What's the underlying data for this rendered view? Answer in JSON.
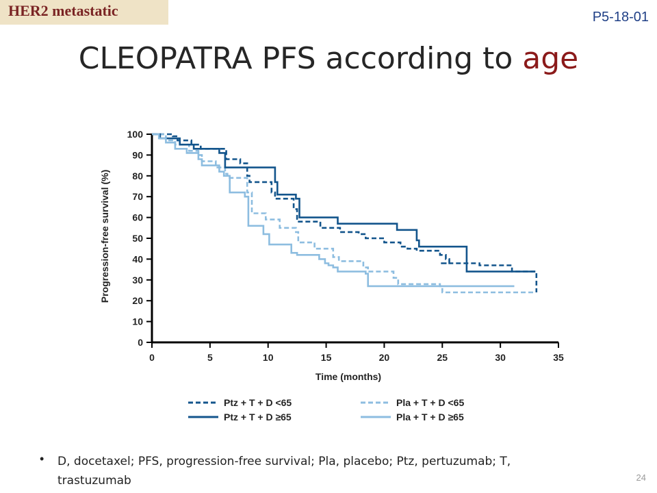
{
  "tag": "HER2 metastatic",
  "abstract_code": "P5-18-01",
  "title_main": "CLEOPATRA PFS according to ",
  "title_accent": "age",
  "footnote": "D, docetaxel; PFS, progression-free survival; Pla, placebo; Ptz, pertuzumab; T, trastuzumab",
  "bullet_glyph": "•",
  "page_number": "24",
  "colors": {
    "dark_blue": "#13558c",
    "light_blue": "#8dbde0",
    "title_accent": "#8b1a1a",
    "tag_bg": "#efe3c6"
  },
  "chart_data": {
    "type": "line",
    "xlabel": "Time (months)",
    "ylabel": "Progression-free survival (%)",
    "xlim": [
      0,
      35
    ],
    "ylim": [
      0,
      100
    ],
    "xticks": [
      0,
      5,
      10,
      15,
      20,
      25,
      30,
      35
    ],
    "yticks": [
      0,
      10,
      20,
      30,
      40,
      50,
      60,
      70,
      80,
      90,
      100
    ],
    "legend_position": "bottom",
    "series": [
      {
        "name": "Ptz + T + D <65",
        "color": "#13558c",
        "dash": true,
        "x": [
          0,
          1.8,
          2.2,
          3.4,
          4.2,
          6.4,
          7.6,
          8.2,
          8.4,
          10.3,
          10.6,
          12.2,
          12.5,
          14.5,
          16.2,
          17.8,
          18.4,
          20.0,
          21.4,
          22.0,
          22.8,
          24.8,
          25.3,
          25.6,
          24.8,
          24.9,
          25.5,
          26.0,
          27.0,
          27.6,
          27.7,
          28.2,
          28.3,
          28.6,
          29.0,
          29.4,
          30.0,
          31.0,
          32.0,
          33.0,
          33.1,
          33.1,
          33.1
        ],
        "y": [
          100,
          99,
          97,
          95,
          93,
          88,
          86,
          80,
          77,
          72,
          69,
          64,
          58,
          55,
          53,
          52,
          50,
          48,
          46,
          45,
          44,
          42,
          40,
          38,
          38,
          38,
          38,
          38,
          38,
          38,
          38,
          37,
          37,
          37,
          37,
          37,
          37,
          34,
          34,
          34,
          34,
          29,
          24
        ]
      },
      {
        "name": "Pla + T + D <65",
        "color": "#8dbde0",
        "dash": true,
        "x": [
          0,
          1.2,
          2.0,
          3.2,
          4.0,
          4.3,
          5.5,
          6.3,
          6.5,
          8.2,
          8.6,
          9.8,
          11.0,
          12.4,
          12.6,
          14.0,
          15.6,
          16.1,
          18.2,
          18.6,
          20.8,
          21.2,
          24.8,
          25.0,
          33.0
        ],
        "y": [
          100,
          97,
          95,
          92,
          90,
          87,
          84,
          81,
          79,
          72,
          62,
          59,
          55,
          53,
          48,
          45,
          41,
          39,
          36,
          34,
          31,
          28,
          27,
          24,
          24
        ]
      },
      {
        "name": "Ptz + T + D ≥65",
        "color": "#13558c",
        "dash": false,
        "x": [
          0,
          0.7,
          2.4,
          3.6,
          5.8,
          6.3,
          8.3,
          10.6,
          10.8,
          12.4,
          12.7,
          16.0,
          20.8,
          21.1,
          22.8,
          23.0,
          27.0,
          27.1,
          33.0
        ],
        "y": [
          100,
          98,
          95,
          93,
          91,
          84,
          84,
          77,
          71,
          69,
          60,
          57,
          57,
          54,
          49,
          46,
          46,
          34,
          34
        ]
      },
      {
        "name": "Pla + T + D ≥65",
        "color": "#8dbde0",
        "dash": false,
        "x": [
          0,
          0.6,
          1.2,
          2.0,
          3.0,
          4.0,
          4.3,
          5.8,
          6.2,
          6.7,
          8.0,
          8.3,
          9.6,
          10.1,
          12.0,
          12.5,
          14.4,
          14.9,
          15.2,
          15.6,
          16.0,
          18.4,
          18.6,
          21.0,
          31.2
        ],
        "y": [
          100,
          98,
          96,
          93,
          91,
          88,
          85,
          82,
          80,
          72,
          70,
          56,
          52,
          47,
          43,
          42,
          40,
          38,
          37,
          36,
          34,
          33,
          27,
          27,
          27
        ]
      }
    ]
  }
}
